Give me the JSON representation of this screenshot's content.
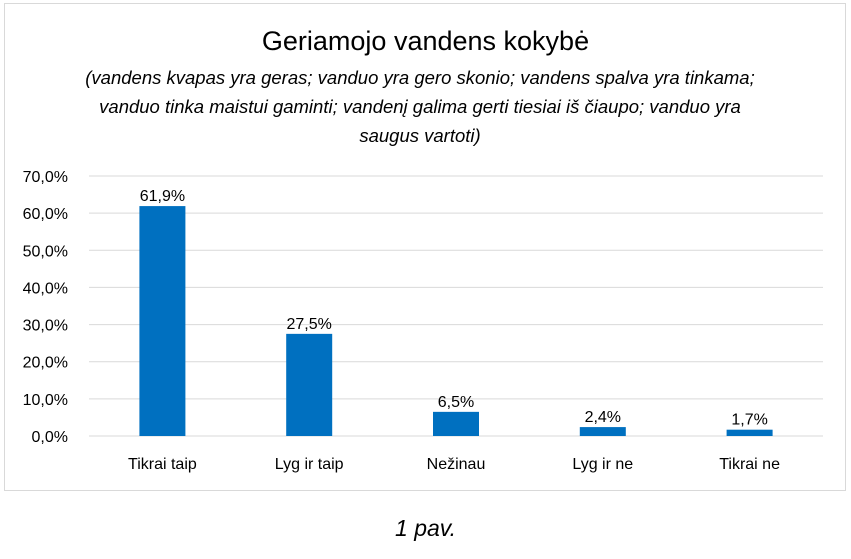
{
  "chart_data": {
    "type": "bar",
    "title": "Geriamojo vandens kokybė",
    "subtitle": "(vandens kvapas yra geras; vanduo yra gero skonio; vandens spalva yra tinkama; vanduo tinka maistui gaminti; vandenį galima gerti tiesiai iš čiaupo; vanduo yra saugus vartoti)",
    "categories": [
      "Tikrai taip",
      "Lyg ir taip",
      "Nežinau",
      "Lyg ir ne",
      "Tikrai ne"
    ],
    "values": [
      61.9,
      27.5,
      6.5,
      2.4,
      1.7
    ],
    "data_labels": [
      "61,9%",
      "27,5%",
      "6,5%",
      "2,4%",
      "1,7%"
    ],
    "y_ticks": [
      "0,0%",
      "10,0%",
      "20,0%",
      "30,0%",
      "40,0%",
      "50,0%",
      "60,0%",
      "70,0%"
    ],
    "ylim": [
      0,
      70
    ],
    "xlabel": "",
    "ylabel": "",
    "grid": true,
    "bar_color": "#0070c0",
    "grid_color": "#d9d9d9"
  },
  "caption": "1 pav."
}
